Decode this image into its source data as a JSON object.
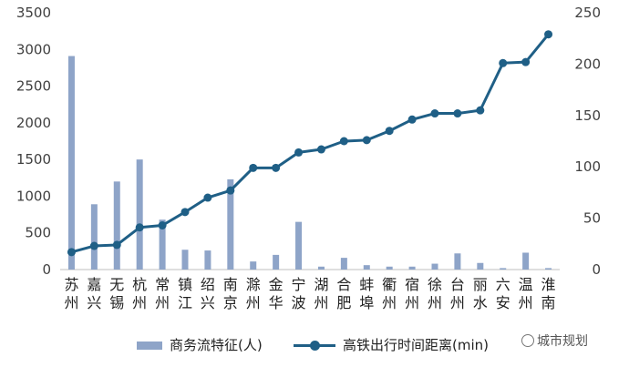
{
  "chart_data": {
    "type": "bar+line",
    "categories": [
      "苏州",
      "嘉兴",
      "无锡",
      "杭州",
      "常州",
      "镇江",
      "绍兴",
      "南京",
      "滁州",
      "金华",
      "宁波",
      "湖州",
      "合肥",
      "蚌埠",
      "衢州",
      "宿州",
      "徐州",
      "台州",
      "丽水",
      "六安",
      "温州",
      "淮南"
    ],
    "series": [
      {
        "name": "商务流特征(人)",
        "type": "bar",
        "axis": "left",
        "values": [
          2910,
          890,
          1200,
          1500,
          680,
          270,
          260,
          1230,
          110,
          200,
          650,
          40,
          160,
          60,
          40,
          40,
          80,
          220,
          90,
          20,
          230,
          20
        ]
      },
      {
        "name": "高铁出行时间距离(min)",
        "type": "line",
        "axis": "right",
        "values": [
          17,
          23,
          24,
          41,
          43,
          56,
          70,
          77,
          99,
          99,
          114,
          117,
          125,
          126,
          135,
          146,
          152,
          152,
          155,
          201,
          202,
          229
        ]
      }
    ],
    "y_left": {
      "min": 0,
      "max": 3500,
      "ticks": [
        0,
        500,
        1000,
        1500,
        2000,
        2500,
        3000,
        3500
      ]
    },
    "y_right": {
      "min": 0,
      "max": 250,
      "ticks": [
        0,
        50,
        100,
        150,
        200,
        250
      ]
    },
    "grid": false,
    "legend_position": "bottom",
    "colors": {
      "bar": "#8ea4c8",
      "line": "#1f5f86",
      "axis": "#bfbfbf"
    }
  },
  "legend": {
    "bar_label": "商务流特征(人)",
    "line_label": "高铁出行时间距离(min)"
  },
  "watermark": {
    "text": "城市规划"
  }
}
